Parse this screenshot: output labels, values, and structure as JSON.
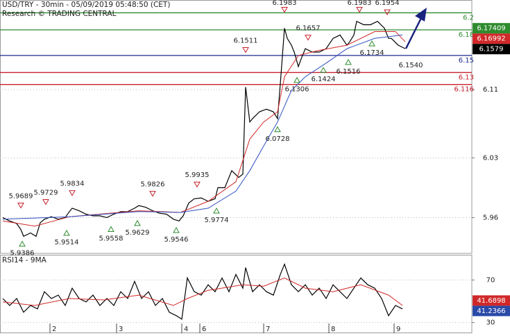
{
  "chart_data": [
    {
      "type": "line",
      "title": "USD/TRY - 30min - 05/09/2019 05:48:50 (CET)",
      "subtitle": "Research © TRADING CENTRAL",
      "xlim": [
        0,
        340
      ],
      "ylim": [
        5.918,
        6.215
      ],
      "yticks": [
        5.96,
        6.03,
        6.11
      ],
      "grid": true,
      "series": [
        {
          "color": "#000000",
          "x": [
            2,
            7,
            12,
            15,
            17,
            22,
            26,
            29,
            32,
            37,
            42,
            47,
            50,
            52,
            57,
            62,
            67,
            72,
            77,
            82,
            87,
            92,
            97,
            100,
            105,
            110,
            115,
            120,
            125,
            129,
            132,
            136,
            140,
            145,
            150,
            155,
            157,
            162,
            167,
            172,
            175,
            177,
            180,
            182,
            187,
            192,
            197,
            200,
            202,
            205,
            207,
            210,
            212,
            215,
            217,
            220,
            225,
            230,
            235,
            240,
            245,
            250,
            252,
            255,
            257,
            262,
            267,
            272,
            277,
            280,
            282,
            287,
            292
          ],
          "values": [
            5.96,
            5.956,
            5.953,
            5.946,
            5.938,
            5.942,
            5.938,
            5.954,
            5.958,
            5.961,
            5.958,
            5.96,
            5.967,
            5.971,
            5.968,
            5.964,
            5.962,
            5.962,
            5.96,
            5.964,
            5.967,
            5.967,
            5.971,
            5.974,
            5.972,
            5.968,
            5.965,
            5.964,
            5.958,
            5.956,
            5.962,
            5.977,
            5.982,
            5.983,
            5.979,
            5.982,
            5.995,
            5.995,
            6.015,
            6.007,
            6.011,
            6.113,
            6.072,
            6.076,
            6.084,
            6.087,
            6.084,
            6.076,
            6.117,
            6.182,
            6.17,
            6.162,
            6.154,
            6.137,
            6.146,
            6.158,
            6.154,
            6.154,
            6.158,
            6.17,
            6.174,
            6.162,
            6.166,
            6.174,
            6.19,
            6.186,
            6.186,
            6.19,
            6.182,
            6.17,
            6.17,
            6.162,
            6.158
          ]
        },
        {
          "color": "#d02828",
          "x": [
            2,
            25,
            50,
            100,
            130,
            150,
            170,
            180,
            190,
            200,
            205,
            215,
            230,
            250,
            270,
            285,
            292
          ],
          "values": [
            5.956,
            5.95,
            5.961,
            5.968,
            5.966,
            5.979,
            6.002,
            6.052,
            6.072,
            6.084,
            6.125,
            6.15,
            6.156,
            6.162,
            6.178,
            6.178,
            6.166
          ]
        },
        {
          "color": "#2f4fc0",
          "x": [
            2,
            50,
            100,
            130,
            150,
            170,
            180,
            190,
            200,
            210,
            220,
            235,
            250,
            270,
            290
          ],
          "values": [
            5.958,
            5.961,
            5.967,
            5.966,
            5.971,
            5.991,
            6.015,
            6.044,
            6.072,
            6.109,
            6.125,
            6.141,
            6.158,
            6.17,
            6.174
          ]
        }
      ],
      "levels": [
        {
          "value": 6.2,
          "color": "#2e8b2e"
        },
        {
          "value": 6.18,
          "color": "#2e8b2e"
        },
        {
          "value": 6.15,
          "color": "#1c2a8c"
        },
        {
          "value": 6.13,
          "color": "#c8202a"
        },
        {
          "value": 6.116,
          "color": "#c8202a"
        }
      ],
      "annotations": [
        {
          "kind": "high",
          "x": 15,
          "value": 5.9689
        },
        {
          "kind": "high",
          "x": 33,
          "value": 5.9729
        },
        {
          "kind": "high",
          "x": 52,
          "value": 5.9834
        },
        {
          "kind": "high",
          "x": 110,
          "value": 5.9826
        },
        {
          "kind": "high",
          "x": 142,
          "value": 5.9935
        },
        {
          "kind": "high",
          "x": 177,
          "value": 6.1511
        },
        {
          "kind": "high",
          "x": 205,
          "value": 6.1983
        },
        {
          "kind": "high",
          "x": 222,
          "value": 6.1657
        },
        {
          "kind": "high",
          "x": 259,
          "value": 6.1983
        },
        {
          "kind": "high",
          "x": 279,
          "value": 6.1954
        },
        {
          "kind": "low",
          "x": 16,
          "value": 5.9386
        },
        {
          "kind": "low",
          "x": 48,
          "value": 5.9514
        },
        {
          "kind": "low",
          "x": 80,
          "value": 5.9558
        },
        {
          "kind": "low",
          "x": 99,
          "value": 5.9629
        },
        {
          "kind": "low",
          "x": 127,
          "value": 5.9546
        },
        {
          "kind": "low",
          "x": 156,
          "value": 5.9774
        },
        {
          "kind": "low",
          "x": 200,
          "value": 6.0728
        },
        {
          "kind": "low",
          "x": 214,
          "value": 6.1306
        },
        {
          "kind": "low",
          "x": 233,
          "value": 6.1424
        },
        {
          "kind": "low",
          "x": 251,
          "value": 6.1516
        },
        {
          "kind": "low",
          "x": 268,
          "value": 6.1734
        },
        {
          "kind": "label",
          "x": 296,
          "value": 6.154,
          "label": "6.1540"
        }
      ],
      "value_boxes": [
        {
          "value": 6.1579,
          "color": "#000000"
        },
        {
          "value": 6.16992,
          "color": "#d02828"
        },
        {
          "value": 6.17409,
          "color": "#2e8b2e"
        }
      ]
    },
    {
      "type": "line",
      "title": "RSI14 - 9MA",
      "xlim": [
        0,
        340
      ],
      "ylim": [
        20,
        93
      ],
      "yticks": [
        30,
        70
      ],
      "grid": true,
      "xticks": [
        {
          "value": 36,
          "label": "2"
        },
        {
          "value": 84,
          "label": "3"
        },
        {
          "value": 131,
          "label": "4"
        },
        {
          "value": 144,
          "label": "6"
        },
        {
          "value": 190,
          "label": "7"
        },
        {
          "value": 237,
          "label": "8"
        },
        {
          "value": 284,
          "label": "9"
        }
      ],
      "series": [
        {
          "color": "#000000",
          "x": [
            2,
            7,
            12,
            17,
            22,
            27,
            32,
            37,
            42,
            47,
            52,
            57,
            62,
            67,
            72,
            77,
            82,
            87,
            92,
            97,
            102,
            107,
            112,
            117,
            122,
            127,
            131,
            135,
            140,
            145,
            150,
            155,
            160,
            165,
            170,
            175,
            177,
            182,
            187,
            192,
            197,
            202,
            205,
            210,
            215,
            220,
            225,
            230,
            235,
            240,
            245,
            250,
            255,
            260,
            265,
            270,
            275,
            280,
            285,
            290
          ],
          "values": [
            52.6,
            46.1,
            52.6,
            39.7,
            46.1,
            42.9,
            59.0,
            52.6,
            55.8,
            46.1,
            62.3,
            52.6,
            49.4,
            55.8,
            46.1,
            52.6,
            46.1,
            59.0,
            52.6,
            68.7,
            52.6,
            59.0,
            46.1,
            52.6,
            39.7,
            36.5,
            33.2,
            71.9,
            59.0,
            55.8,
            65.5,
            59.0,
            71.9,
            59.0,
            75.2,
            62.3,
            81.6,
            59.0,
            65.5,
            59.0,
            55.8,
            75.2,
            84.8,
            65.5,
            59.0,
            65.5,
            55.8,
            62.3,
            52.6,
            65.5,
            59.0,
            52.6,
            62.3,
            71.9,
            65.5,
            62.3,
            52.6,
            36.5,
            46.1,
            42.9
          ]
        },
        {
          "color": "#d02828",
          "x": [
            2,
            25,
            50,
            75,
            100,
            125,
            135,
            150,
            175,
            190,
            205,
            220,
            240,
            260,
            280,
            290
          ],
          "values": [
            49.4,
            46.1,
            52.6,
            51.3,
            55.8,
            46.1,
            52.6,
            60.3,
            65.5,
            64.2,
            71.9,
            62.3,
            59.0,
            65.5,
            55.8,
            46.1
          ]
        }
      ],
      "value_boxes": [
        {
          "value": 41.2366,
          "color": "#2a4aa8"
        },
        {
          "value": 41.6898,
          "color": "#d02828"
        }
      ]
    }
  ]
}
